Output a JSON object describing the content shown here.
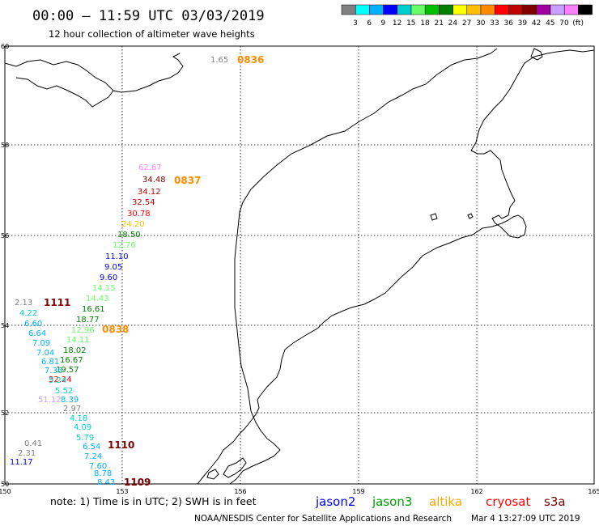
{
  "header": {
    "title": "00:00 – 11:59 UTC 03/03/2019",
    "subtitle": "12 hour collection of altimeter wave heights"
  },
  "scale": {
    "colors": [
      "#808080",
      "#00ffff",
      "#00b0ff",
      "#0000ff",
      "#00cfcf",
      "#66ff66",
      "#00c000",
      "#008000",
      "#ffff00",
      "#ffc000",
      "#ff8c00",
      "#ff0000",
      "#c00000",
      "#800000",
      "#a000a0",
      "#c8a0ff",
      "#ff80ff",
      "#000000"
    ],
    "labels": [
      "3",
      "6",
      "9",
      "12",
      "15",
      "18",
      "21",
      "24",
      "27",
      "30",
      "33",
      "36",
      "39",
      "42",
      "45",
      "70",
      "(ft)"
    ]
  },
  "axes": {
    "x_ticks": [
      "150",
      "153",
      "156",
      "159",
      "162",
      "165"
    ],
    "y_ticks": [
      "60",
      "58",
      "56",
      "54",
      "52",
      "50"
    ]
  },
  "times": [
    {
      "text": "0836",
      "color": "#ff8c00"
    },
    {
      "text": "0837",
      "color": "#ff8c00"
    },
    {
      "text": "0838",
      "color": "#ff8c00"
    },
    {
      "text": "1111",
      "color": "#800000"
    },
    {
      "text": "1110",
      "color": "#800000"
    },
    {
      "text": "1109",
      "color": "#800000"
    }
  ],
  "observations": [
    {
      "text": "1.65",
      "color": "#808080"
    },
    {
      "text": "62.67",
      "color": "#ff80ff"
    },
    {
      "text": "34.48",
      "color": "#800000"
    },
    {
      "text": "34.12",
      "color": "#c00000"
    },
    {
      "text": "32.54",
      "color": "#c00000"
    },
    {
      "text": "30.78",
      "color": "#ff0000"
    },
    {
      "text": "24.20",
      "color": "#ffc000"
    },
    {
      "text": "18.50",
      "color": "#008000"
    },
    {
      "text": "12.76",
      "color": "#66ff66"
    },
    {
      "text": "11.10",
      "color": "#0000ff"
    },
    {
      "text": "9.05",
      "color": "#0000ff"
    },
    {
      "text": "9.60",
      "color": "#0000ff"
    },
    {
      "text": "14.15",
      "color": "#66ff66"
    },
    {
      "text": "14.43",
      "color": "#66ff66"
    },
    {
      "text": "16.61",
      "color": "#008000"
    },
    {
      "text": "18.77",
      "color": "#008000"
    },
    {
      "text": "12.96",
      "color": "#66ff66"
    },
    {
      "text": "14.11",
      "color": "#66ff66"
    },
    {
      "text": "18.02",
      "color": "#008000"
    },
    {
      "text": "16.67",
      "color": "#008000"
    },
    {
      "text": "19.57",
      "color": "#008000"
    },
    {
      "text": "32.24",
      "color": "#ff0000"
    },
    {
      "text": "2.13",
      "color": "#808080"
    },
    {
      "text": "4.22",
      "color": "#00cfcf"
    },
    {
      "text": "6.60",
      "color": "#00b0ff"
    },
    {
      "text": "6.64",
      "color": "#00b0ff"
    },
    {
      "text": "7.09",
      "color": "#00b0ff"
    },
    {
      "text": "7.04",
      "color": "#00b0ff"
    },
    {
      "text": "6.81",
      "color": "#00b0ff"
    },
    {
      "text": "7.36",
      "color": "#00b0ff"
    },
    {
      "text": "5.24",
      "color": "#00cfcf"
    },
    {
      "text": "5.52",
      "color": "#00cfcf"
    },
    {
      "text": "51.12",
      "color": "#c8a0ff"
    },
    {
      "text": "8.39",
      "color": "#00b0ff"
    },
    {
      "text": "2.97",
      "color": "#808080"
    },
    {
      "text": "4.18",
      "color": "#00cfcf"
    },
    {
      "text": "4.09",
      "color": "#00cfcf"
    },
    {
      "text": "5.79",
      "color": "#00cfcf"
    },
    {
      "text": "0.41",
      "color": "#808080"
    },
    {
      "text": "6.54",
      "color": "#00b0ff"
    },
    {
      "text": "2.31",
      "color": "#808080"
    },
    {
      "text": "7.24",
      "color": "#00b0ff"
    },
    {
      "text": "11.17",
      "color": "#0000ff"
    },
    {
      "text": "7.60",
      "color": "#00b0ff"
    },
    {
      "text": "8.78",
      "color": "#00b0ff"
    },
    {
      "text": "8.43",
      "color": "#00b0ff"
    }
  ],
  "footer": {
    "note": "note:  1) Time is in UTC;  2) SWH is in feet",
    "legend": [
      {
        "name": "jason2",
        "color": "#0000ff"
      },
      {
        "name": "jason3",
        "color": "#00a000"
      },
      {
        "name": "altika",
        "color": "#ffa500"
      },
      {
        "name": "cryosat",
        "color": "#ff0000"
      },
      {
        "name": "s3a",
        "color": "#800000"
      }
    ],
    "credit": "NOAA/NESDIS Center for Satellite Applications and Research",
    "timestamp": "Mar  4 13:27:09 UTC 2019"
  }
}
